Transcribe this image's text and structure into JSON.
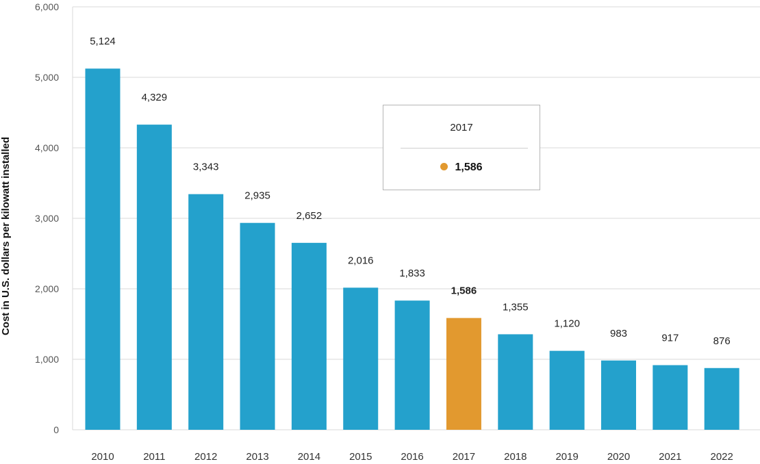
{
  "chart_data": {
    "type": "bar",
    "ylabel": "Cost in U.S. dollars per kilowatt installed",
    "xlabel": "",
    "ylim": [
      0,
      6000
    ],
    "yticks": [
      0,
      1000,
      2000,
      3000,
      4000,
      5000,
      6000
    ],
    "ytick_labels": [
      "0",
      "1,000",
      "2,000",
      "3,000",
      "4,000",
      "5,000",
      "6,000"
    ],
    "grid": true,
    "categories": [
      "2010",
      "2011",
      "2012",
      "2013",
      "2014",
      "2015",
      "2016",
      "2017",
      "2018",
      "2019",
      "2020",
      "2021",
      "2022"
    ],
    "values": [
      5124,
      4329,
      3343,
      2935,
      2652,
      2016,
      1833,
      1586,
      1355,
      1120,
      983,
      917,
      876
    ],
    "value_labels": [
      "5,124",
      "4,329",
      "3,343",
      "2,935",
      "2,652",
      "2,016",
      "1,833",
      "1,586",
      "1,355",
      "1,120",
      "983",
      "917",
      "876"
    ],
    "highlighted_index": 7,
    "colors": {
      "bar": "#24a1cc",
      "highlight": "#e2992f",
      "grid": "#d9d9d9"
    }
  },
  "tooltip": {
    "year": "2017",
    "value": "1,586",
    "dot_color": "#e2992f"
  }
}
